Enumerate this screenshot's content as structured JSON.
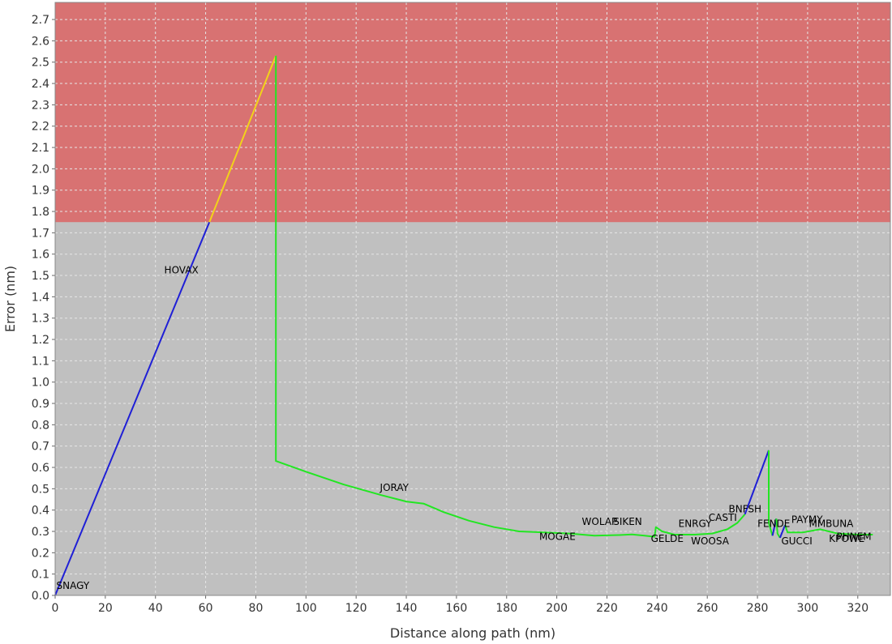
{
  "chart_data": {
    "type": "line",
    "title": "",
    "xlabel": "Distance along path (nm)",
    "ylabel": "Error (nm)",
    "xlim": [
      0,
      333
    ],
    "ylim": [
      0,
      2.78
    ],
    "x_ticks": [
      0,
      20,
      40,
      60,
      80,
      100,
      120,
      140,
      160,
      180,
      200,
      220,
      240,
      260,
      280,
      300,
      320
    ],
    "y_ticks": [
      0.0,
      0.1,
      0.2,
      0.3,
      0.4,
      0.5,
      0.6,
      0.7,
      0.8,
      0.9,
      1.0,
      1.1,
      1.2,
      1.3,
      1.4,
      1.5,
      1.6,
      1.7,
      1.8,
      1.9,
      2.0,
      2.1,
      2.2,
      2.3,
      2.4,
      2.5,
      2.6,
      2.7
    ],
    "grid": true,
    "colors": {
      "plot_background": "#c0c0c0",
      "limit_region": "#d87272",
      "grid": "#e6e6e6"
    },
    "limit_region": {
      "y_from": 1.75,
      "y_to": 2.78
    },
    "segments": [
      {
        "color": "#1f1fd6",
        "points": [
          [
            0,
            0
          ],
          [
            61.5,
            1.75
          ]
        ]
      },
      {
        "color": "#f2d21a",
        "points": [
          [
            61.5,
            1.75
          ],
          [
            88,
            2.53
          ]
        ]
      },
      {
        "color": "#22e622",
        "points": [
          [
            88,
            2.53
          ],
          [
            88,
            0.63
          ],
          [
            100,
            0.58
          ],
          [
            115,
            0.52
          ],
          [
            130,
            0.47
          ],
          [
            140,
            0.44
          ],
          [
            147,
            0.43
          ],
          [
            155,
            0.39
          ],
          [
            165,
            0.35
          ],
          [
            175,
            0.32
          ],
          [
            185,
            0.3
          ],
          [
            195,
            0.295
          ],
          [
            205,
            0.29
          ],
          [
            215,
            0.28
          ],
          [
            225,
            0.283
          ],
          [
            230,
            0.286
          ],
          [
            235,
            0.28
          ],
          [
            239,
            0.275
          ],
          [
            239.5,
            0.32
          ],
          [
            242,
            0.3
          ],
          [
            247,
            0.285
          ],
          [
            255,
            0.285
          ],
          [
            262,
            0.29
          ],
          [
            268,
            0.31
          ],
          [
            272,
            0.34
          ],
          [
            275,
            0.38
          ]
        ]
      },
      {
        "color": "#1f1fd6",
        "points": [
          [
            275,
            0.38
          ],
          [
            284.5,
            0.68
          ]
        ]
      },
      {
        "color": "#22e622",
        "points": [
          [
            284.5,
            0.68
          ],
          [
            284.5,
            0.34
          ],
          [
            286,
            0.28
          ]
        ]
      },
      {
        "color": "#1f1fd6",
        "points": [
          [
            286,
            0.28
          ],
          [
            287.5,
            0.36
          ]
        ]
      },
      {
        "color": "#22e622",
        "points": [
          [
            287.5,
            0.36
          ],
          [
            288,
            0.29
          ],
          [
            289,
            0.27
          ]
        ]
      },
      {
        "color": "#1f1fd6",
        "points": [
          [
            289,
            0.27
          ],
          [
            291,
            0.33
          ]
        ]
      },
      {
        "color": "#22e622",
        "points": [
          [
            291,
            0.33
          ],
          [
            292,
            0.295
          ],
          [
            298,
            0.295
          ],
          [
            305,
            0.31
          ],
          [
            312,
            0.29
          ],
          [
            320,
            0.285
          ],
          [
            326,
            0.285
          ]
        ]
      }
    ],
    "waypoints": [
      {
        "label": "SNAGY",
        "x": 0.5,
        "y": 0.03
      },
      {
        "label": "HOVAX",
        "x": 43.5,
        "y": 1.51
      },
      {
        "label": "JORAY",
        "x": 129.5,
        "y": 0.49
      },
      {
        "label": "MOGAE",
        "x": 193,
        "y": 0.26
      },
      {
        "label": "WOLAP",
        "x": 210,
        "y": 0.33
      },
      {
        "label": "SIKEN",
        "x": 222.5,
        "y": 0.33
      },
      {
        "label": "GELDE",
        "x": 237.5,
        "y": 0.25
      },
      {
        "label": "ENRGY",
        "x": 248.5,
        "y": 0.32
      },
      {
        "label": "WOOSA",
        "x": 253.5,
        "y": 0.24
      },
      {
        "label": "CASTI",
        "x": 260.5,
        "y": 0.35
      },
      {
        "label": "BNFSH",
        "x": 268.5,
        "y": 0.39
      },
      {
        "label": "FENDE",
        "x": 280,
        "y": 0.32
      },
      {
        "label": "GUCCI",
        "x": 289.5,
        "y": 0.24
      },
      {
        "label": "PAYMY",
        "x": 293.5,
        "y": 0.34
      },
      {
        "label": "MMBUNA",
        "x": 300.5,
        "y": 0.32
      },
      {
        "label": "KPOWE",
        "x": 308.5,
        "y": 0.25
      },
      {
        "label": "PHNEM",
        "x": 311.5,
        "y": 0.26
      }
    ]
  }
}
